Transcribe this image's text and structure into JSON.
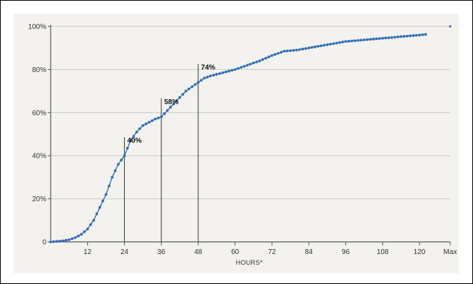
{
  "chart_data": {
    "type": "scatter",
    "title": "",
    "xlabel": "HOURS*",
    "ylabel": "",
    "ylim": [
      0,
      100
    ],
    "x_ticks": [
      "12",
      "24",
      "36",
      "48",
      "60",
      "72",
      "84",
      "96",
      "108",
      "120",
      "Max"
    ],
    "y_ticks": [
      "0",
      "20%",
      "40%",
      "60%",
      "80%",
      "100%"
    ],
    "grid": "horizontal",
    "colors": {
      "series": "#2f6fb5",
      "grid": "#c8c8c8",
      "axis": "#555555",
      "background": "#f4f2ef"
    },
    "series": [
      {
        "x": [
          0,
          4,
          6,
          8,
          10,
          12,
          14,
          16,
          18,
          20,
          22,
          24,
          26,
          28,
          30,
          32,
          34,
          36,
          38,
          40,
          42,
          44,
          46,
          48,
          50,
          52,
          56,
          60,
          64,
          68,
          72,
          76,
          80,
          84,
          88,
          92,
          96,
          100,
          104,
          108,
          112,
          116,
          120,
          122
        ],
        "y": [
          0,
          0.5,
          1,
          2,
          3.5,
          6,
          10,
          16,
          22,
          30,
          36,
          40,
          47,
          51,
          54,
          55.5,
          57,
          58,
          61,
          64,
          67,
          70,
          72,
          74,
          76,
          77,
          78.5,
          80,
          82,
          84,
          86.5,
          88.5,
          89,
          90,
          91,
          92,
          93,
          93.5,
          94,
          94.5,
          95,
          95.5,
          96,
          96.3
        ]
      }
    ],
    "max_point": {
      "x": "Max",
      "y": 100
    },
    "annotations": [
      {
        "x": 24,
        "y": 40,
        "label": "40%"
      },
      {
        "x": 36,
        "y": 58,
        "label": "58%"
      },
      {
        "x": 48,
        "y": 74,
        "label": "74%"
      }
    ]
  }
}
